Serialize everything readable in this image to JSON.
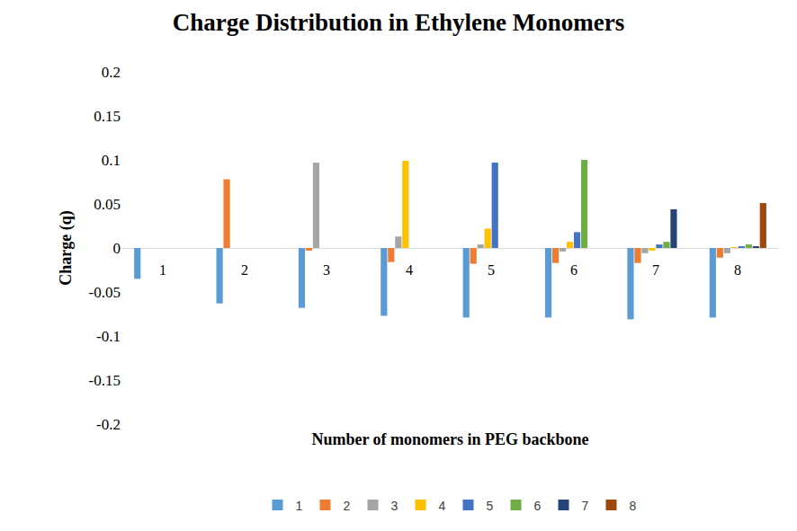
{
  "chart_data": {
    "type": "bar",
    "title": "Charge Distribution in Ethylene Monomers",
    "x_label": "Number of monomers in PEG backbone",
    "y_label": "Charge (q)",
    "categories": [
      "1",
      "2",
      "3",
      "4",
      "5",
      "6",
      "7",
      "8"
    ],
    "series": [
      {
        "name": "1",
        "color": "#5B9BD5",
        "values": [
          -0.035,
          -0.063,
          -0.068,
          -0.077,
          -0.079,
          -0.079,
          -0.081,
          -0.079
        ]
      },
      {
        "name": "2",
        "color": "#ED7D31",
        "values": [
          null,
          0.078,
          -0.003,
          -0.016,
          -0.018,
          -0.017,
          -0.017,
          -0.011
        ]
      },
      {
        "name": "3",
        "color": "#A5A5A5",
        "values": [
          null,
          null,
          0.097,
          0.013,
          0.004,
          -0.004,
          -0.006,
          -0.006
        ]
      },
      {
        "name": "4",
        "color": "#FFC000",
        "values": [
          null,
          null,
          null,
          0.099,
          0.022,
          0.007,
          -0.003,
          0.001
        ]
      },
      {
        "name": "5",
        "color": "#4472C4",
        "values": [
          null,
          null,
          null,
          null,
          0.097,
          0.018,
          0.004,
          0.002
        ]
      },
      {
        "name": "6",
        "color": "#70AD47",
        "values": [
          null,
          null,
          null,
          null,
          null,
          0.1,
          0.007,
          0.004
        ]
      },
      {
        "name": "7",
        "color": "#264478",
        "values": [
          null,
          null,
          null,
          null,
          null,
          null,
          0.044,
          0.002
        ]
      },
      {
        "name": "8",
        "color": "#9E480E",
        "values": [
          null,
          null,
          null,
          null,
          null,
          null,
          null,
          0.051
        ]
      }
    ],
    "ylim": [
      -0.2,
      0.2
    ],
    "yticks": [
      -0.2,
      -0.15,
      -0.1,
      -0.05,
      0,
      0.05,
      0.1,
      0.15,
      0.2
    ],
    "grid": false,
    "legend": "bottom",
    "tick_labels": true
  }
}
